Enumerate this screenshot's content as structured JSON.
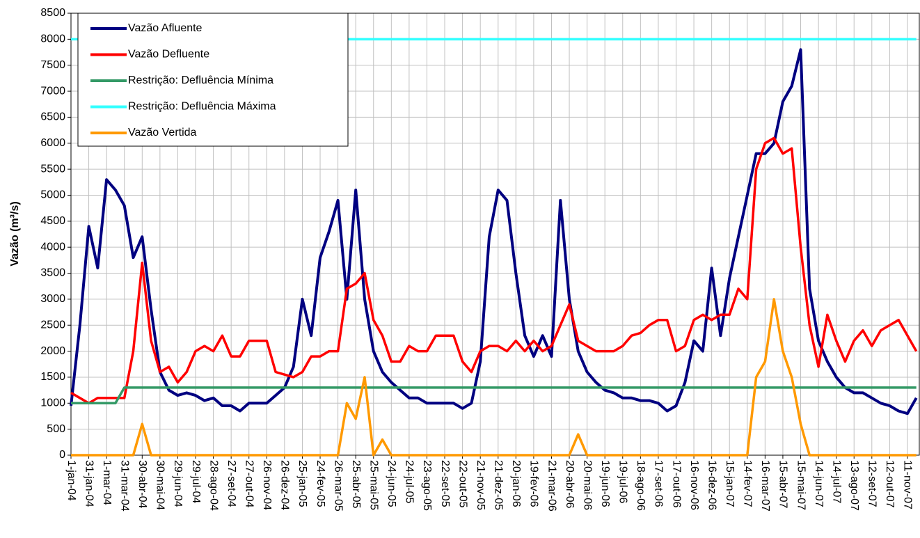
{
  "chart_data": {
    "type": "line",
    "ylabel": "Vazão (m³/s)",
    "x": [
      0,
      15,
      30,
      45,
      60,
      75,
      90,
      105,
      120,
      135,
      150,
      165,
      180,
      195,
      210,
      225,
      240,
      255,
      270,
      285,
      300,
      315,
      330,
      345,
      360,
      375,
      390,
      405,
      420,
      435,
      450,
      465,
      480,
      495,
      510,
      525,
      540,
      555,
      570,
      585,
      600,
      615,
      630,
      645,
      660,
      675,
      690,
      705,
      720,
      735,
      750,
      765,
      780,
      795,
      810,
      825,
      840,
      855,
      870,
      885,
      900,
      915,
      930,
      945,
      960,
      975,
      990,
      1005,
      1020,
      1035,
      1050,
      1065,
      1080,
      1095,
      1110,
      1125,
      1140,
      1155,
      1170,
      1185,
      1200,
      1215,
      1230,
      1245,
      1260,
      1275,
      1290,
      1305,
      1320,
      1335,
      1350,
      1365,
      1380,
      1395,
      1410,
      1425
    ],
    "xlim": [
      0,
      1430
    ],
    "xticks": [
      {
        "value": 0,
        "label": "1-jan-04"
      },
      {
        "value": 30,
        "label": "31-jan-04"
      },
      {
        "value": 60,
        "label": "1-mar-04"
      },
      {
        "value": 90,
        "label": "31-mar-04"
      },
      {
        "value": 120,
        "label": "30-abr-04"
      },
      {
        "value": 150,
        "label": "30-mai-04"
      },
      {
        "value": 180,
        "label": "29-jun-04"
      },
      {
        "value": 210,
        "label": "29-jul-04"
      },
      {
        "value": 240,
        "label": "28-ago-04"
      },
      {
        "value": 270,
        "label": "27-set-04"
      },
      {
        "value": 300,
        "label": "27-out-04"
      },
      {
        "value": 330,
        "label": "26-nov-04"
      },
      {
        "value": 360,
        "label": "26-dez-04"
      },
      {
        "value": 390,
        "label": "25-jan-05"
      },
      {
        "value": 420,
        "label": "24-fev-05"
      },
      {
        "value": 450,
        "label": "26-mar-05"
      },
      {
        "value": 480,
        "label": "25-abr-05"
      },
      {
        "value": 510,
        "label": "25-mai-05"
      },
      {
        "value": 540,
        "label": "24-jun-05"
      },
      {
        "value": 570,
        "label": "24-jul-05"
      },
      {
        "value": 600,
        "label": "23-ago-05"
      },
      {
        "value": 630,
        "label": "22-set-05"
      },
      {
        "value": 660,
        "label": "22-out-05"
      },
      {
        "value": 690,
        "label": "21-nov-05"
      },
      {
        "value": 720,
        "label": "21-dez-05"
      },
      {
        "value": 750,
        "label": "20-jan-06"
      },
      {
        "value": 780,
        "label": "19-fev-06"
      },
      {
        "value": 810,
        "label": "21-mar-06"
      },
      {
        "value": 840,
        "label": "20-abr-06"
      },
      {
        "value": 870,
        "label": "20-mai-06"
      },
      {
        "value": 900,
        "label": "19-jun-06"
      },
      {
        "value": 930,
        "label": "19-jul-06"
      },
      {
        "value": 960,
        "label": "18-ago-06"
      },
      {
        "value": 990,
        "label": "17-set-06"
      },
      {
        "value": 1020,
        "label": "17-out-06"
      },
      {
        "value": 1050,
        "label": "16-nov-06"
      },
      {
        "value": 1080,
        "label": "16-dez-06"
      },
      {
        "value": 1110,
        "label": "15-jan-07"
      },
      {
        "value": 1140,
        "label": "14-fev-07"
      },
      {
        "value": 1170,
        "label": "16-mar-07"
      },
      {
        "value": 1200,
        "label": "15-abr-07"
      },
      {
        "value": 1230,
        "label": "15-mai-07"
      },
      {
        "value": 1260,
        "label": "14-jun-07"
      },
      {
        "value": 1290,
        "label": "14-jul-07"
      },
      {
        "value": 1320,
        "label": "13-ago-07"
      },
      {
        "value": 1350,
        "label": "12-set-07"
      },
      {
        "value": 1380,
        "label": "12-out-07"
      },
      {
        "value": 1410,
        "label": "11-nov-07"
      }
    ],
    "ylim": [
      0,
      8500
    ],
    "yticks": [
      0,
      500,
      1000,
      1500,
      2000,
      2500,
      3000,
      3500,
      4000,
      4500,
      5000,
      5500,
      6000,
      6500,
      7000,
      7500,
      8000,
      8500
    ],
    "grid": true,
    "legend": "upper-left",
    "series": [
      {
        "name": "Vazão Afluente",
        "color": "#000080",
        "values": [
          950,
          2500,
          4400,
          3600,
          5300,
          5100,
          4800,
          3800,
          4200,
          2800,
          1600,
          1250,
          1150,
          1200,
          1150,
          1050,
          1100,
          950,
          950,
          850,
          1000,
          1000,
          1000,
          1150,
          1300,
          1700,
          3000,
          2300,
          3800,
          4300,
          4900,
          3000,
          5100,
          3000,
          2000,
          1600,
          1400,
          1250,
          1100,
          1100,
          1000,
          1000,
          1000,
          1000,
          900,
          1000,
          1800,
          4200,
          5100,
          4900,
          3500,
          2300,
          1900,
          2300,
          1900,
          4900,
          3000,
          2000,
          1600,
          1400,
          1250,
          1200,
          1100,
          1100,
          1050,
          1050,
          1000,
          850,
          950,
          1400,
          2200,
          2000,
          3600,
          2300,
          3400,
          4200,
          5000,
          5800,
          5800,
          6000,
          6800,
          7100,
          7800,
          3200,
          2200,
          1800,
          1500,
          1300,
          1200,
          1200,
          1100,
          1000,
          950,
          850,
          800,
          1100
        ]
      },
      {
        "name": "Vazão Defluente",
        "color": "#ff0000",
        "values": [
          1200,
          1100,
          1000,
          1100,
          1100,
          1100,
          1100,
          2000,
          3700,
          2200,
          1600,
          1700,
          1400,
          1600,
          2000,
          2100,
          2000,
          2300,
          1900,
          1900,
          2200,
          2200,
          2200,
          1600,
          1550,
          1500,
          1600,
          1900,
          1900,
          2000,
          2000,
          3200,
          3300,
          3500,
          2600,
          2300,
          1800,
          1800,
          2100,
          2000,
          2000,
          2300,
          2300,
          2300,
          1800,
          1600,
          2000,
          2100,
          2100,
          2000,
          2200,
          2000,
          2200,
          2000,
          2100,
          2500,
          2900,
          2200,
          2100,
          2000,
          2000,
          2000,
          2100,
          2300,
          2350,
          2500,
          2600,
          2600,
          2000,
          2100,
          2600,
          2700,
          2600,
          2700,
          2700,
          3200,
          3000,
          5500,
          6000,
          6100,
          5800,
          5900,
          4000,
          2500,
          1700,
          2700,
          2200,
          1800,
          2200,
          2400,
          2100,
          2400,
          2500,
          2600,
          2300,
          2000
        ]
      },
      {
        "name": "Restrição: Defluência Mínima",
        "color": "#339966",
        "values": [
          1000,
          1000,
          1000,
          1000,
          1000,
          1000,
          1300,
          1300,
          1300,
          1300,
          1300,
          1300,
          1300,
          1300,
          1300,
          1300,
          1300,
          1300,
          1300,
          1300,
          1300,
          1300,
          1300,
          1300,
          1300,
          1300,
          1300,
          1300,
          1300,
          1300,
          1300,
          1300,
          1300,
          1300,
          1300,
          1300,
          1300,
          1300,
          1300,
          1300,
          1300,
          1300,
          1300,
          1300,
          1300,
          1300,
          1300,
          1300,
          1300,
          1300,
          1300,
          1300,
          1300,
          1300,
          1300,
          1300,
          1300,
          1300,
          1300,
          1300,
          1300,
          1300,
          1300,
          1300,
          1300,
          1300,
          1300,
          1300,
          1300,
          1300,
          1300,
          1300,
          1300,
          1300,
          1300,
          1300,
          1300,
          1300,
          1300,
          1300,
          1300,
          1300,
          1300,
          1300,
          1300,
          1300,
          1300,
          1300,
          1300,
          1300,
          1300,
          1300,
          1300,
          1300,
          1300,
          1300
        ]
      },
      {
        "name": "Restrição: Defluência Máxima",
        "color": "#33ffff",
        "values": [
          8000,
          8000,
          8000,
          8000,
          8000,
          8000,
          8000,
          8000,
          8000,
          8000,
          8000,
          8000,
          8000,
          8000,
          8000,
          8000,
          8000,
          8000,
          8000,
          8000,
          8000,
          8000,
          8000,
          8000,
          8000,
          8000,
          8000,
          8000,
          8000,
          8000,
          8000,
          8000,
          8000,
          8000,
          8000,
          8000,
          8000,
          8000,
          8000,
          8000,
          8000,
          8000,
          8000,
          8000,
          8000,
          8000,
          8000,
          8000,
          8000,
          8000,
          8000,
          8000,
          8000,
          8000,
          8000,
          8000,
          8000,
          8000,
          8000,
          8000,
          8000,
          8000,
          8000,
          8000,
          8000,
          8000,
          8000,
          8000,
          8000,
          8000,
          8000,
          8000,
          8000,
          8000,
          8000,
          8000,
          8000,
          8000,
          8000,
          8000,
          8000,
          8000,
          8000,
          8000,
          8000,
          8000,
          8000,
          8000,
          8000,
          8000,
          8000,
          8000,
          8000,
          8000,
          8000,
          8000
        ]
      },
      {
        "name": "Vazão Vertida",
        "color": "#ff9900",
        "values": [
          0,
          0,
          0,
          0,
          0,
          0,
          0,
          0,
          600,
          0,
          0,
          0,
          0,
          0,
          0,
          0,
          0,
          0,
          0,
          0,
          0,
          0,
          0,
          0,
          0,
          0,
          0,
          0,
          0,
          0,
          0,
          1000,
          700,
          1500,
          0,
          300,
          0,
          0,
          0,
          0,
          0,
          0,
          0,
          0,
          0,
          0,
          0,
          0,
          0,
          0,
          0,
          0,
          0,
          0,
          0,
          0,
          0,
          400,
          0,
          0,
          0,
          0,
          0,
          0,
          0,
          0,
          0,
          0,
          0,
          0,
          0,
          0,
          0,
          0,
          0,
          0,
          0,
          1500,
          1800,
          3000,
          2000,
          1500,
          600,
          0,
          0,
          0,
          0,
          0,
          0,
          0,
          0,
          0,
          0,
          0,
          0,
          0
        ]
      }
    ]
  }
}
